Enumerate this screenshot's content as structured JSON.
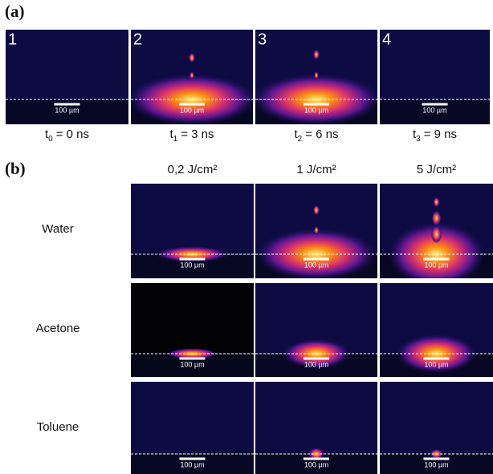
{
  "panel_a": {
    "label": "(a)",
    "images": [
      {
        "number": "1",
        "scale_bar": "100 µm",
        "time": {
          "main": "t",
          "sub": "0",
          "tail": "= 0 ns"
        }
      },
      {
        "number": "2",
        "scale_bar": "100 µm",
        "time": {
          "main": "t",
          "sub": "1",
          "tail": "= 3 ns"
        }
      },
      {
        "number": "3",
        "scale_bar": "100 µm",
        "time": {
          "main": "t",
          "sub": "2",
          "tail": "= 6 ns"
        }
      },
      {
        "number": "4",
        "scale_bar": "100 µm",
        "time": {
          "main": "t",
          "sub": "3",
          "tail": "= 9 ns"
        }
      }
    ]
  },
  "panel_b": {
    "label": "(b)",
    "columns": [
      "0,2 J/cm²",
      "1 J/cm²",
      "5 J/cm²"
    ],
    "rows": [
      {
        "name": "Water",
        "scale_bars": [
          "100 µm",
          "100 µm",
          "100 µm"
        ]
      },
      {
        "name": "Acetone",
        "scale_bars": [
          "100 µm",
          "100 µm",
          "100 µm"
        ]
      },
      {
        "name": "Toluene",
        "scale_bars": [
          "100 µm",
          "100 µm",
          "100 µm"
        ]
      }
    ]
  }
}
